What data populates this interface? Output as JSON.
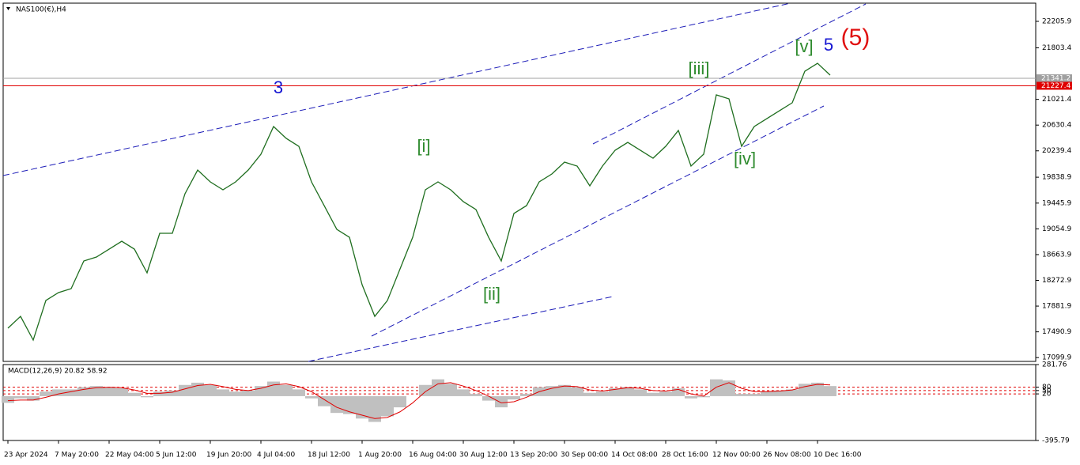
{
  "chart_data": [
    {
      "type": "line",
      "title": "NAS100(€),H4",
      "color": "#1f6e1f",
      "categories": [
        "23 Apr 2024",
        null,
        null,
        null,
        "7 May 20:00",
        null,
        null,
        null,
        "22 May 04:00",
        null,
        null,
        null,
        "5 Jun 12:00",
        null,
        null,
        null,
        "19 Jun 20:00",
        null,
        null,
        null,
        "4 Jul 04:00",
        null,
        null,
        null,
        "18 Jul 12:00",
        null,
        null,
        null,
        "1 Aug 20:00",
        null,
        null,
        null,
        "16 Aug 04:00",
        null,
        null,
        null,
        "30 Aug 12:00",
        null,
        null,
        null,
        "13 Sep 20:00",
        null,
        null,
        null,
        "30 Sep 00:00",
        null,
        null,
        null,
        "14 Oct 08:00",
        null,
        null,
        null,
        "28 Oct 16:00",
        null,
        null,
        null,
        "12 Nov 00:00",
        null,
        null,
        null,
        "26 Nov 08:00",
        null,
        null,
        null,
        "10 Dec 16:00",
        null
      ],
      "values": [
        17546,
        17726,
        17366,
        17967,
        18087,
        18147,
        18567,
        18627,
        18747,
        18867,
        18747,
        18387,
        18987,
        18987,
        19588,
        19948,
        19768,
        19648,
        19768,
        19948,
        20188,
        20609,
        20429,
        20308,
        19768,
        19408,
        19047,
        18927,
        18207,
        17726,
        17967,
        18447,
        18927,
        19648,
        19768,
        19648,
        19468,
        19348,
        18927,
        18567,
        19288,
        19408,
        19768,
        19888,
        20068,
        20008,
        19708,
        20008,
        20248,
        20368,
        20248,
        20128,
        20308,
        20549,
        20008,
        20188,
        21089,
        21029,
        20308,
        20609,
        20729,
        20849,
        20969,
        21449,
        21569,
        21389
      ],
      "ylim": [
        17042,
        22482
      ],
      "yticks": [
        22205.9,
        21803.4,
        21021.4,
        20630.4,
        20239.4,
        19838.9,
        19445.9,
        19054.9,
        18663.9,
        18272.9,
        17881.9,
        17490.9,
        17099.9
      ],
      "levels": [
        {
          "value": 21341.2,
          "color": "#a0a0a0"
        },
        {
          "value": 21227.4,
          "color": "#e00000"
        }
      ],
      "annotations": [
        {
          "text": "3",
          "color": "#1414d2"
        },
        {
          "text": "[i]",
          "color": "#2e8b2e"
        },
        {
          "text": "[ii]",
          "color": "#2e8b2e"
        },
        {
          "text": "[iii]",
          "color": "#2e8b2e"
        },
        {
          "text": "[iv]",
          "color": "#2e8b2e"
        },
        {
          "text": "[v]",
          "color": "#2e8b2e"
        },
        {
          "text": "5",
          "color": "#1414d2"
        },
        {
          "text": "(5)",
          "color": "#e01010"
        }
      ]
    },
    {
      "type": "macd",
      "title": "MACD(12,26,9) 20.82 58.92",
      "series": [
        {
          "color": "#c0c0c0",
          "values": [
            -60,
            -20,
            -40,
            40,
            60,
            60,
            80,
            90,
            80,
            70,
            30,
            -10,
            40,
            50,
            100,
            120,
            100,
            60,
            40,
            50,
            90,
            130,
            100,
            60,
            -20,
            -90,
            -150,
            -160,
            -200,
            -230,
            -180,
            -100,
            0,
            100,
            150,
            110,
            60,
            20,
            -40,
            -100,
            -30,
            20,
            80,
            90,
            100,
            80,
            30,
            40,
            70,
            80,
            60,
            30,
            40,
            70,
            -20,
            -10,
            150,
            140,
            20,
            20,
            40,
            50,
            60,
            110,
            120,
            90
          ]
        },
        {
          "color": "#e00000",
          "values": [
            -40,
            -35,
            -35,
            -10,
            20,
            40,
            60,
            75,
            80,
            75,
            55,
            25,
            25,
            35,
            65,
            95,
            105,
            85,
            60,
            50,
            70,
            100,
            110,
            85,
            40,
            -30,
            -100,
            -140,
            -170,
            -200,
            -190,
            -140,
            -60,
            40,
            110,
            120,
            90,
            50,
            0,
            -60,
            -50,
            -10,
            40,
            70,
            90,
            85,
            55,
            45,
            60,
            75,
            70,
            50,
            45,
            60,
            20,
            0,
            80,
            120,
            70,
            40,
            40,
            45,
            55,
            85,
            105,
            100
          ]
        }
      ],
      "ylim": [
        -395.79,
        281.76
      ],
      "yticks": [
        281.76,
        80,
        50,
        20,
        -395.79
      ]
    }
  ]
}
